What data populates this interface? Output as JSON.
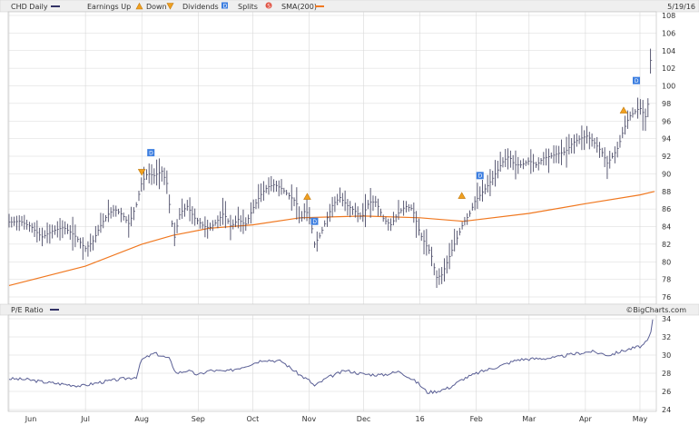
{
  "legend": {
    "ticker": "CHD Daily",
    "earnings_up": "Earnings Up",
    "earnings_down": "Down",
    "dividends": "Dividends",
    "splits": "Splits",
    "sma": "SMA(200)",
    "date": "5/19/16"
  },
  "pe_panel": {
    "label": "P/E Ratio",
    "credit": "©BigCharts.com"
  },
  "colors": {
    "price": "#4a4a66",
    "pe": "#5a5f95",
    "sma": "#f07820",
    "grid": "#d8d8d8",
    "earnings_marker": "#f0a020",
    "dividend_marker": "#3c7ee0",
    "split_marker": "#e05040"
  },
  "chart_data": [
    {
      "type": "line",
      "subtype": "ohlc",
      "title": "CHD Daily",
      "ylim": [
        76,
        108
      ],
      "yticks": [
        76,
        78,
        80,
        82,
        84,
        86,
        88,
        90,
        92,
        94,
        96,
        98,
        100,
        102,
        104,
        106,
        108
      ],
      "x_axis": {
        "range_days": [
          0,
          355
        ],
        "tick_labels": [
          "Jun",
          "Jul",
          "Aug",
          "Sep",
          "Oct",
          "Nov",
          "Dec",
          "16",
          "Feb",
          "Mar",
          "Apr",
          "May"
        ],
        "tick_days": [
          12,
          42,
          73,
          104,
          134,
          165,
          195,
          226,
          257,
          286,
          317,
          347
        ],
        "grid_days": [
          0,
          42,
          73,
          104,
          134,
          165,
          195,
          226,
          257,
          286,
          317,
          347
        ]
      },
      "series": [
        {
          "name": "CHD",
          "points": [
            [
              0,
              84.5
            ],
            [
              6,
              84.6
            ],
            [
              12,
              84.0
            ],
            [
              18,
              82.8
            ],
            [
              24,
              83.5
            ],
            [
              30,
              83.9
            ],
            [
              36,
              83.0
            ],
            [
              42,
              81.5
            ],
            [
              46,
              82.3
            ],
            [
              50,
              84.0
            ],
            [
              54,
              85.3
            ],
            [
              58,
              86.0
            ],
            [
              62,
              85.4
            ],
            [
              66,
              84.3
            ],
            [
              70,
              86.5
            ],
            [
              73,
              89.0
            ],
            [
              76,
              90.0
            ],
            [
              80,
              89.8
            ],
            [
              84,
              90.3
            ],
            [
              87,
              88.8
            ],
            [
              89,
              85.0
            ],
            [
              91,
              82.8
            ],
            [
              94,
              85.5
            ],
            [
              98,
              86.3
            ],
            [
              102,
              85.0
            ],
            [
              106,
              84.2
            ],
            [
              110,
              83.8
            ],
            [
              114,
              84.5
            ],
            [
              118,
              85.5
            ],
            [
              122,
              84.0
            ],
            [
              126,
              84.8
            ],
            [
              130,
              84.2
            ],
            [
              134,
              86.0
            ],
            [
              138,
              87.5
            ],
            [
              142,
              88.5
            ],
            [
              146,
              88.8
            ],
            [
              150,
              88.3
            ],
            [
              154,
              87.5
            ],
            [
              158,
              86.8
            ],
            [
              160,
              84.5
            ],
            [
              163,
              86.0
            ],
            [
              166,
              84.5
            ],
            [
              168,
              82.0
            ],
            [
              171,
              83.0
            ],
            [
              174,
              84.5
            ],
            [
              178,
              86.5
            ],
            [
              182,
              87.3
            ],
            [
              186,
              86.4
            ],
            [
              190,
              85.8
            ],
            [
              194,
              85.0
            ],
            [
              198,
              86.8
            ],
            [
              202,
              86.8
            ],
            [
              206,
              84.8
            ],
            [
              210,
              84.2
            ],
            [
              214,
              85.5
            ],
            [
              218,
              86.3
            ],
            [
              222,
              86.0
            ],
            [
              226,
              83.2
            ],
            [
              229,
              82.0
            ],
            [
              232,
              81.0
            ],
            [
              235,
              78.2
            ],
            [
              238,
              78.5
            ],
            [
              241,
              80.0
            ],
            [
              244,
              81.5
            ],
            [
              247,
              83.0
            ],
            [
              250,
              84.5
            ],
            [
              253,
              85.3
            ],
            [
              256,
              86.8
            ],
            [
              260,
              87.8
            ],
            [
              263,
              88.6
            ],
            [
              266,
              89.5
            ],
            [
              269,
              90.5
            ],
            [
              272,
              91.5
            ],
            [
              275,
              92.0
            ],
            [
              278,
              91.0
            ],
            [
              282,
              91.0
            ],
            [
              286,
              91.5
            ],
            [
              290,
              91.0
            ],
            [
              294,
              91.8
            ],
            [
              298,
              92.0
            ],
            [
              302,
              92.3
            ],
            [
              306,
              92.5
            ],
            [
              310,
              93.5
            ],
            [
              314,
              94.0
            ],
            [
              318,
              94.3
            ],
            [
              322,
              93.5
            ],
            [
              326,
              92.5
            ],
            [
              329,
              91.2
            ],
            [
              332,
              92.0
            ],
            [
              335,
              93.0
            ],
            [
              338,
              95.0
            ],
            [
              341,
              96.5
            ],
            [
              344,
              97.0
            ],
            [
              347,
              97.5
            ],
            [
              350,
              96.5
            ],
            [
              352,
              98.5
            ],
            [
              353,
              104.0
            ],
            [
              354,
              106.5
            ]
          ]
        },
        {
          "name": "SMA(200)",
          "points": [
            [
              0,
              77.3
            ],
            [
              42,
              79.5
            ],
            [
              73,
              82.0
            ],
            [
              90,
              83.0
            ],
            [
              110,
              83.8
            ],
            [
              134,
              84.2
            ],
            [
              160,
              85.0
            ],
            [
              195,
              85.2
            ],
            [
              226,
              85.0
            ],
            [
              250,
              84.6
            ],
            [
              286,
              85.5
            ],
            [
              317,
              86.6
            ],
            [
              347,
              87.6
            ],
            [
              355,
              88.0
            ]
          ]
        }
      ],
      "events": [
        {
          "type": "earnings_down",
          "day": 73,
          "price": 90.2
        },
        {
          "type": "earnings_up",
          "day": 164,
          "price": 87.4
        },
        {
          "type": "earnings_up",
          "day": 249,
          "price": 87.5
        },
        {
          "type": "earnings_up",
          "day": 338,
          "price": 97.2
        },
        {
          "type": "dividend",
          "day": 78,
          "price": 92.4
        },
        {
          "type": "dividend",
          "day": 168,
          "price": 84.6
        },
        {
          "type": "dividend",
          "day": 259,
          "price": 89.8
        },
        {
          "type": "dividend",
          "day": 345,
          "price": 100.6
        }
      ]
    },
    {
      "type": "line",
      "title": "P/E Ratio",
      "ylim": [
        24,
        34
      ],
      "yticks": [
        24,
        26,
        28,
        30,
        32,
        34
      ],
      "series": [
        {
          "name": "P/E Ratio",
          "points": [
            [
              0,
              27.4
            ],
            [
              10,
              27.3
            ],
            [
              20,
              27.0
            ],
            [
              30,
              26.8
            ],
            [
              40,
              26.6
            ],
            [
              50,
              27.0
            ],
            [
              60,
              27.3
            ],
            [
              70,
              27.6
            ],
            [
              73,
              29.5
            ],
            [
              80,
              30.2
            ],
            [
              88,
              29.6
            ],
            [
              92,
              28.0
            ],
            [
              98,
              28.3
            ],
            [
              104,
              27.8
            ],
            [
              110,
              28.3
            ],
            [
              120,
              28.2
            ],
            [
              130,
              28.8
            ],
            [
              140,
              29.5
            ],
            [
              150,
              29.3
            ],
            [
              160,
              27.8
            ],
            [
              165,
              27.2
            ],
            [
              168,
              26.6
            ],
            [
              175,
              27.5
            ],
            [
              185,
              28.3
            ],
            [
              195,
              27.9
            ],
            [
              205,
              27.8
            ],
            [
              215,
              28.2
            ],
            [
              225,
              26.9
            ],
            [
              230,
              25.9
            ],
            [
              235,
              26.0
            ],
            [
              242,
              26.4
            ],
            [
              250,
              27.4
            ],
            [
              260,
              28.2
            ],
            [
              270,
              28.8
            ],
            [
              280,
              29.5
            ],
            [
              290,
              29.6
            ],
            [
              300,
              29.7
            ],
            [
              310,
              30.1
            ],
            [
              320,
              30.4
            ],
            [
              330,
              30.0
            ],
            [
              340,
              30.6
            ],
            [
              348,
              31.0
            ],
            [
              351,
              31.5
            ],
            [
              353,
              32.5
            ],
            [
              354,
              33.8
            ]
          ]
        }
      ]
    }
  ]
}
